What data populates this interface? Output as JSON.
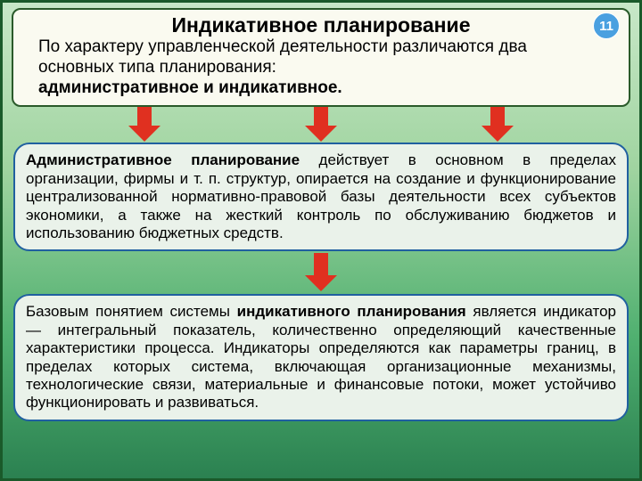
{
  "badge": "11",
  "title": "Индикативное планирование",
  "intro_plain": "По характеру управленческой деятельности различаются два основных типа планирования:",
  "intro_bold": "административное и индикативное.",
  "box1_bold": "Административное планирование",
  "box1_rest": " действует в основном в пределах организации, фирмы и т. п. структур, опирается на создание и функционирование централизованной нормативно-правовой базы деятельности всех субъектов экономики, а также на жесткий контроль по обслуживанию бюджетов и использованию бюджетных средств.",
  "box2_pre": "Базовым понятием системы ",
  "box2_bold": "индикативного планирования",
  "box2_rest": " является индикатор — интегральный показатель, количественно определяющий качественные характеристики процесса. Индикаторы определяются как параметры границ, в пределах которых система, включающая организационные механизмы, технологические связи, материальные и финансовые потоки, может устойчиво функционировать и развиваться.",
  "colors": {
    "arrow": "#e03020",
    "box_border": "#2060a0",
    "box_bg": "#eaf2ea",
    "title_bg": "#fafaf0",
    "title_border": "#2a5a2a",
    "badge_bg": "#4aa0e0"
  }
}
